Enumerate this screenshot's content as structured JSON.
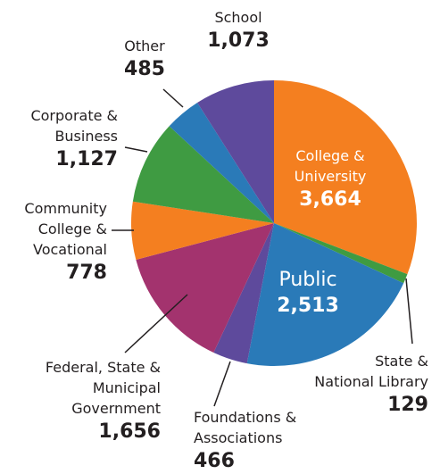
{
  "chart_data": {
    "type": "pie",
    "categories": [
      "College &\nUniversity",
      "State &\nNational Library",
      "Public",
      "Foundations &\nAssociations",
      "Federal, State &\nMunicipal\nGovernment",
      "Community\nCollege &\nVocational",
      "Corporate &\nBusiness",
      "Other",
      "School"
    ],
    "values": [
      3664,
      129,
      2513,
      466,
      1656,
      778,
      1127,
      485,
      1073
    ],
    "value_labels": [
      "3,664",
      "129",
      "2,513",
      "466",
      "1,656",
      "778",
      "1,127",
      "485",
      "1,073"
    ],
    "colors": [
      "#f47f20",
      "#3f9b42",
      "#2a7ab8",
      "#5e4a9c",
      "#a3336e",
      "#f47f20",
      "#3f9b42",
      "#2a7ab8",
      "#5e4a9c"
    ]
  }
}
